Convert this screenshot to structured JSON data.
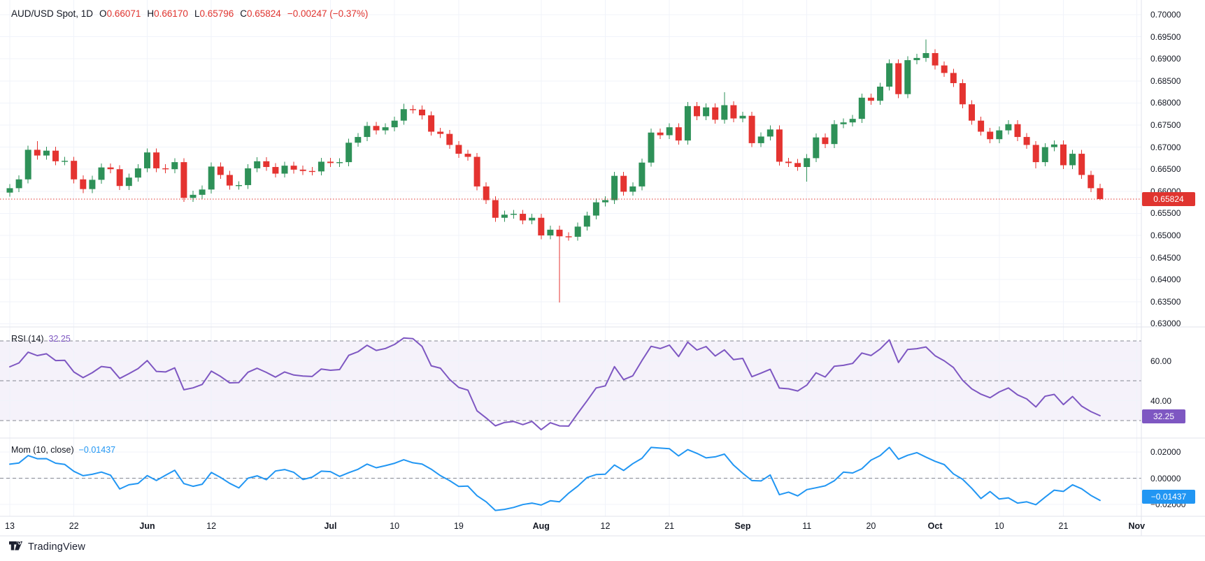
{
  "legend": {
    "symbol": "AUD/USD Spot, 1D",
    "items": [
      {
        "k": "O",
        "v": "0.66071"
      },
      {
        "k": "H",
        "v": "0.66170"
      },
      {
        "k": "L",
        "v": "0.65796"
      },
      {
        "k": "C",
        "v": "0.65824"
      }
    ],
    "change": "−0.00247 (−0.37%)"
  },
  "rsi_legend": {
    "title": "RSI (14)",
    "value": "32.25"
  },
  "mom_legend": {
    "title": "Mom (10, close)",
    "value": "−0.01437"
  },
  "badges": {
    "price": "0.65824",
    "rsi": "32.25",
    "mom": "−0.01437"
  },
  "footer": {
    "brand": "TradingView"
  },
  "colors": {
    "up": "#2e9158",
    "down": "#e43330",
    "rsi_line": "#7e57c2",
    "rsi_band_fill": "rgba(126,87,194,0.08)",
    "mom_line": "#2196f3",
    "grid": "#f0f3fa",
    "separator": "#e0e3eb",
    "dashed_level": "#858893",
    "price_line": "#e0342f",
    "text": "#131722"
  },
  "chart_data": {
    "type": "candlestick+indicators",
    "title": "AUD/USD Spot, 1D",
    "panes": [
      {
        "type": "candlestick",
        "name": "price",
        "price_axis_labels": [
          "0.70000",
          "0.69500",
          "0.69000",
          "0.68500",
          "0.68000",
          "0.67500",
          "0.67000",
          "0.66500",
          "0.66000",
          "0.65500",
          "0.65000",
          "0.64500",
          "0.64000",
          "0.63500",
          "0.63000"
        ],
        "axis_top_price": 0.7,
        "axis_step": 0.005,
        "current_price": 0.65824,
        "last": {
          "open": 0.66071,
          "high": 0.6617,
          "low": 0.65796,
          "close": 0.65824,
          "change": -0.00247,
          "change_pct": -0.37
        },
        "first_open": 0.6597,
        "closes": [
          0.6607,
          0.6627,
          0.6694,
          0.6681,
          0.6692,
          0.6668,
          0.6669,
          0.6627,
          0.6605,
          0.6626,
          0.6654,
          0.665,
          0.6612,
          0.6631,
          0.6652,
          0.6688,
          0.6652,
          0.665,
          0.6666,
          0.6585,
          0.6592,
          0.6604,
          0.6656,
          0.6637,
          0.6613,
          0.6614,
          0.6652,
          0.6668,
          0.6655,
          0.664,
          0.6658,
          0.6649,
          0.6646,
          0.6645,
          0.6667,
          0.6664,
          0.6666,
          0.671,
          0.6723,
          0.6748,
          0.6738,
          0.6745,
          0.676,
          0.6786,
          0.6785,
          0.6772,
          0.6735,
          0.673,
          0.6705,
          0.6685,
          0.6678,
          0.6611,
          0.658,
          0.654,
          0.6547,
          0.6549,
          0.6534,
          0.654,
          0.65,
          0.6513,
          0.6498,
          0.6497,
          0.652,
          0.6545,
          0.6575,
          0.658,
          0.6635,
          0.6599,
          0.6611,
          0.6665,
          0.6733,
          0.6727,
          0.6745,
          0.6715,
          0.6793,
          0.677,
          0.679,
          0.6762,
          0.6795,
          0.6765,
          0.6771,
          0.6709,
          0.6724,
          0.674,
          0.6667,
          0.6664,
          0.6655,
          0.6675,
          0.6722,
          0.6707,
          0.6752,
          0.6756,
          0.6764,
          0.6812,
          0.6805,
          0.6837,
          0.689,
          0.682,
          0.6897,
          0.6902,
          0.6913,
          0.6885,
          0.6868,
          0.6845,
          0.6797,
          0.676,
          0.6735,
          0.6718,
          0.6738,
          0.6752,
          0.6723,
          0.6705,
          0.6666,
          0.67,
          0.6706,
          0.6659,
          0.6685,
          0.6637,
          0.6607,
          0.65824
        ],
        "wick_overrides": {
          "3": {
            "h": 0.6714
          },
          "19": {
            "l": 0.6576
          },
          "43": {
            "h": 0.6798
          },
          "60": {
            "l": 0.6348
          },
          "78": {
            "h": 0.6824
          },
          "87": {
            "l": 0.6622
          },
          "100": {
            "h": 0.6944
          },
          "112": {
            "l": 0.6652
          },
          "119": {
            "h": 0.6617,
            "l": 0.65796
          }
        }
      },
      {
        "type": "line",
        "name": "RSI",
        "period": 14,
        "last_value": 32.25,
        "dashed_levels": [
          70,
          50,
          30
        ],
        "band": [
          30,
          70
        ],
        "axis_labels": [
          {
            "v": 60,
            "t": "60.00"
          },
          {
            "v": 40,
            "t": "40.00"
          }
        ]
      },
      {
        "type": "line",
        "name": "Momentum",
        "period": 10,
        "source": "close",
        "last_value": -0.01437,
        "zero_line": 0,
        "axis_labels": [
          {
            "v": 0.02,
            "t": "0.02000"
          },
          {
            "v": 0,
            "t": "0.00000"
          },
          {
            "v": -0.02,
            "t": "−0.02000"
          }
        ]
      }
    ],
    "time_axis": {
      "ticks": [
        {
          "label": "13",
          "i": 0,
          "bold": false
        },
        {
          "label": "22",
          "i": 7,
          "bold": false
        },
        {
          "label": "Jun",
          "i": 15,
          "bold": true
        },
        {
          "label": "12",
          "i": 22,
          "bold": false
        },
        {
          "label": "Jul",
          "i": 35,
          "bold": true
        },
        {
          "label": "10",
          "i": 42,
          "bold": false
        },
        {
          "label": "19",
          "i": 49,
          "bold": false
        },
        {
          "label": "Aug",
          "i": 58,
          "bold": true
        },
        {
          "label": "12",
          "i": 65,
          "bold": false
        },
        {
          "label": "21",
          "i": 72,
          "bold": false
        },
        {
          "label": "Sep",
          "i": 80,
          "bold": true
        },
        {
          "label": "11",
          "i": 87,
          "bold": false
        },
        {
          "label": "20",
          "i": 94,
          "bold": false
        },
        {
          "label": "Oct",
          "i": 101,
          "bold": true
        },
        {
          "label": "10",
          "i": 108,
          "bold": false
        },
        {
          "label": "21",
          "i": 115,
          "bold": false
        },
        {
          "label": "Nov",
          "i": 123,
          "bold": true
        }
      ]
    }
  }
}
